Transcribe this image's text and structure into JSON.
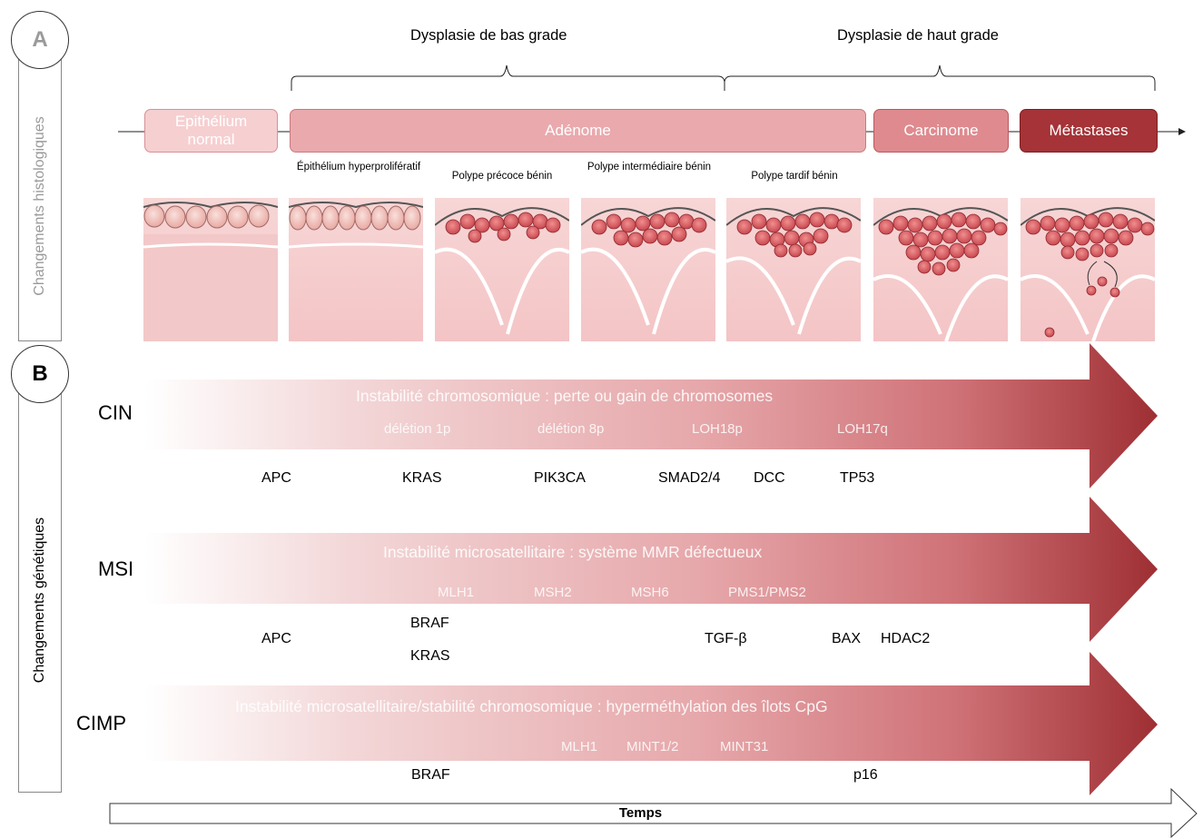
{
  "panels": {
    "a_label": "A",
    "b_label": "B"
  },
  "side_labels": {
    "histo": "Changements histologiques",
    "genetic": "Changements génétiques"
  },
  "brackets": {
    "low": "Dysplasie de bas grade",
    "high": "Dysplasie de haut grade"
  },
  "stages": {
    "normal": "Epithélium normal",
    "adenome": "Adénome",
    "carcinome": "Carcinome",
    "metastases": "Métastases"
  },
  "sublabels": {
    "hyper": "Épithélium hyperprolifératif",
    "early": "Polype précoce bénin",
    "intermediate": "Polype intermédiaire bénin",
    "late": "Polype tardif bénin"
  },
  "pathways": [
    {
      "name": "CIN",
      "title": "Instabilité chromosomique : perte ou gain de chromosomes",
      "tags": [
        "délétion 1p",
        "délétion 8p",
        "LOH18p",
        "LOH17q"
      ],
      "genes": [
        "APC",
        "KRAS",
        "PIK3CA",
        "SMAD2/4",
        "DCC",
        "TP53"
      ]
    },
    {
      "name": "MSI",
      "title": "Instabilité microsatellitaire : système MMR défectueux",
      "tags": [
        "MLH1",
        "MSH2",
        "MSH6",
        "PMS1/PMS2"
      ],
      "genes": [
        "APC",
        "BRAF",
        "KRAS",
        "TGF-β",
        "BAX",
        "HDAC2"
      ]
    },
    {
      "name": "CIMP",
      "title": "Instabilité microsatellitaire/stabilité chromosomique : hyperméthylation des îlots CpG",
      "tags": [
        "MLH1",
        "MINT1/2",
        "MINT31"
      ],
      "genes": [
        "BRAF",
        "p16"
      ]
    }
  ],
  "time_label": "Temps",
  "colors": {
    "normal": "#f4c9cb",
    "adenome": "#e8a4a8",
    "carcinome": "#de8a8f",
    "metastases": "#a53337",
    "arrow_start": "#ffffff",
    "arrow_end": "#9e2f33"
  }
}
